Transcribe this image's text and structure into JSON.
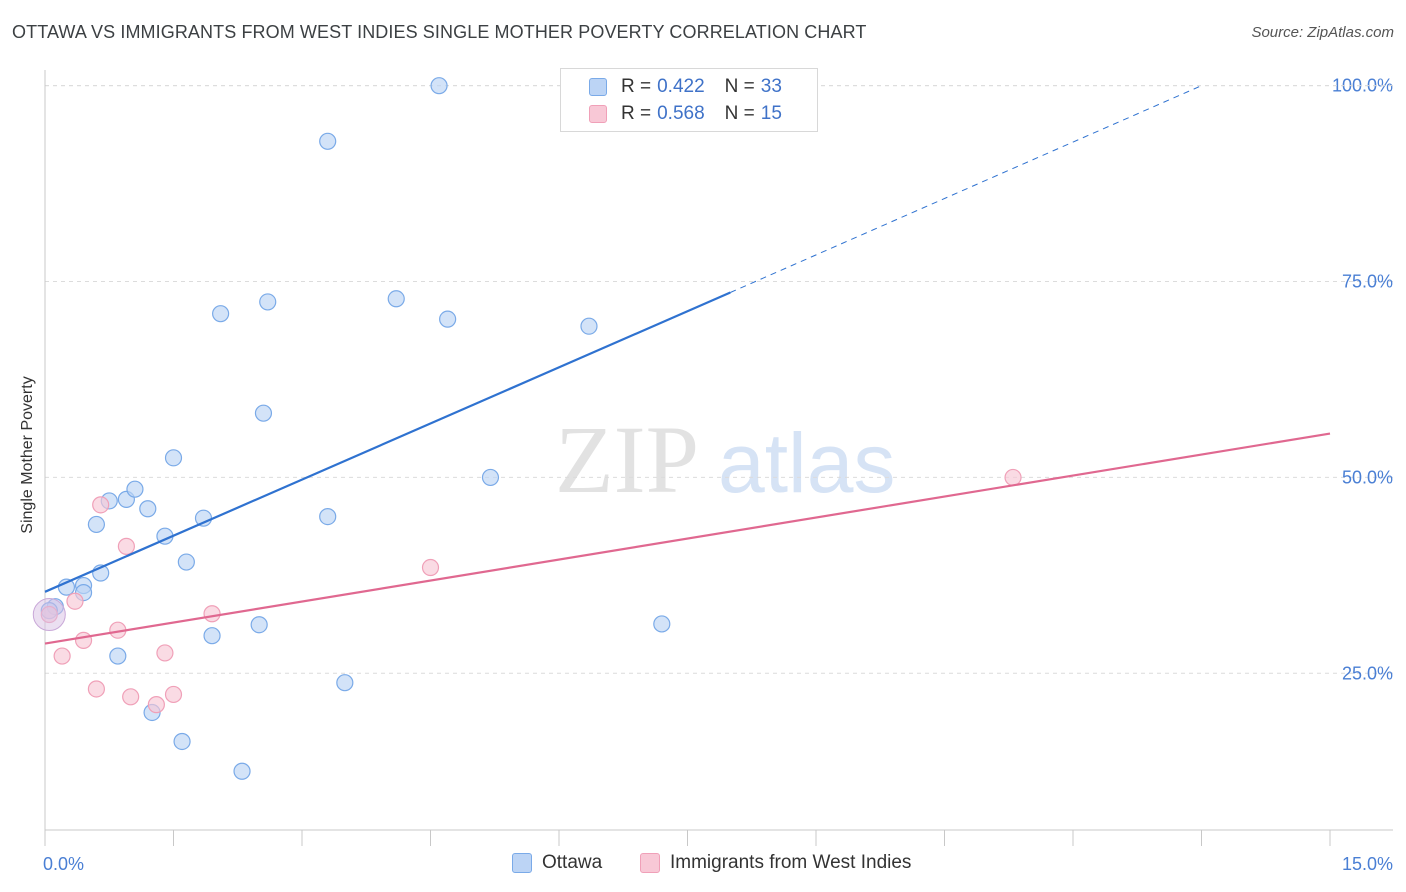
{
  "title": "OTTAWA VS IMMIGRANTS FROM WEST INDIES SINGLE MOTHER POVERTY CORRELATION CHART",
  "source": "Source: ZipAtlas.com",
  "watermark": {
    "zip": "ZIP",
    "atlas": "atlas"
  },
  "legend": {
    "rows": [
      {
        "r_label": "R =",
        "r_value": "0.422",
        "n_label": "N =",
        "n_value": "33"
      },
      {
        "r_label": "R =",
        "r_value": "0.568",
        "n_label": "N =",
        "n_value": "15"
      }
    ]
  },
  "chart_data": {
    "type": "scatter",
    "title": "OTTAWA VS IMMIGRANTS FROM WEST INDIES SINGLE MOTHER POVERTY CORRELATION CHART",
    "xlabel": "",
    "ylabel": "Single Mother Poverty",
    "xlim": [
      0,
      15
    ],
    "ylim": [
      5,
      102
    ],
    "x_tick_labels": [
      "0.0%",
      "15.0%"
    ],
    "y_ticks": [
      25,
      50,
      75,
      100
    ],
    "y_tick_labels": [
      "25.0%",
      "50.0%",
      "75.0%",
      "100.0%"
    ],
    "legend_position": "bottom",
    "series": [
      {
        "name": "Ottawa",
        "color": "#7aaae8",
        "fill": "#bcd4f5",
        "line_color": "#2f72d0",
        "trend": {
          "x0": 0,
          "y0": 35.4,
          "x1": 8.0,
          "y1": 73.6,
          "dashed_to_x": 13.5,
          "dashed_to_y": 100
        },
        "points": [
          [
            0.12,
            33.5
          ],
          [
            0.25,
            36.0
          ],
          [
            0.45,
            36.2
          ],
          [
            0.45,
            35.3
          ],
          [
            0.6,
            44.0
          ],
          [
            0.65,
            37.8
          ],
          [
            0.75,
            47.0
          ],
          [
            0.85,
            27.2
          ],
          [
            0.95,
            47.2
          ],
          [
            1.05,
            48.5
          ],
          [
            1.2,
            46.0
          ],
          [
            1.25,
            20.0
          ],
          [
            1.4,
            42.5
          ],
          [
            1.5,
            52.5
          ],
          [
            1.6,
            16.3
          ],
          [
            1.65,
            39.2
          ],
          [
            1.85,
            44.8
          ],
          [
            1.95,
            29.8
          ],
          [
            2.05,
            70.9
          ],
          [
            2.3,
            12.5
          ],
          [
            2.5,
            31.2
          ],
          [
            2.55,
            58.2
          ],
          [
            2.6,
            72.4
          ],
          [
            3.3,
            45.0
          ],
          [
            3.3,
            92.9
          ],
          [
            3.5,
            23.8
          ],
          [
            4.1,
            72.8
          ],
          [
            4.6,
            100.0
          ],
          [
            4.7,
            70.2
          ],
          [
            5.2,
            50.0
          ],
          [
            6.35,
            69.3
          ],
          [
            7.2,
            31.3
          ],
          [
            0.05,
            33.0
          ]
        ]
      },
      {
        "name": "Immigrants from West Indies",
        "color": "#f0a0b8",
        "fill": "#f8c8d6",
        "line_color": "#e06890",
        "trend": {
          "x0": 0,
          "y0": 28.8,
          "x1": 15.0,
          "y1": 55.6
        },
        "points": [
          [
            0.05,
            32.5
          ],
          [
            0.2,
            27.2
          ],
          [
            0.35,
            34.2
          ],
          [
            0.45,
            29.2
          ],
          [
            0.6,
            23.0
          ],
          [
            0.65,
            46.5
          ],
          [
            0.85,
            30.5
          ],
          [
            0.95,
            41.2
          ],
          [
            1.0,
            22.0
          ],
          [
            1.3,
            21.0
          ],
          [
            1.4,
            27.6
          ],
          [
            1.5,
            22.3
          ],
          [
            1.95,
            32.6
          ],
          [
            4.5,
            38.5
          ],
          [
            11.3,
            50.0
          ]
        ]
      }
    ]
  }
}
